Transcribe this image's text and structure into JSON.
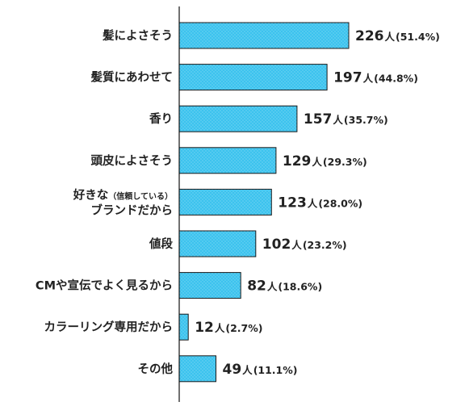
{
  "chart_data": {
    "type": "bar",
    "orientation": "horizontal",
    "title": "",
    "xlabel": "",
    "ylabel": "",
    "grid": false,
    "legend": "none",
    "unit": "人",
    "xlim": [
      0,
      226
    ],
    "bar_color": "#3cc3ee",
    "bar_border_color": "#1a1a1a",
    "categories": [
      {
        "label": "髪によさそう",
        "label_line2": "",
        "label_small": ""
      },
      {
        "label": "髪質にあわせて",
        "label_line2": "",
        "label_small": ""
      },
      {
        "label": "香り",
        "label_line2": "",
        "label_small": ""
      },
      {
        "label": "頭皮によさそう",
        "label_line2": "",
        "label_small": ""
      },
      {
        "label": "好きな",
        "label_small": "（信頼している）",
        "label_line2": "ブランドだから"
      },
      {
        "label": "値段",
        "label_line2": "",
        "label_small": ""
      },
      {
        "label": "CMや宣伝でよく見るから",
        "label_line2": "",
        "label_small": ""
      },
      {
        "label": "カラーリング専用だから",
        "label_line2": "",
        "label_small": ""
      },
      {
        "label": "その他",
        "label_line2": "",
        "label_small": ""
      }
    ],
    "values": [
      226,
      197,
      157,
      129,
      123,
      102,
      82,
      12,
      49
    ],
    "percent_labels": [
      "(51.4%)",
      "(44.8%)",
      "(35.7%)",
      "(29.3%)",
      "(28.0%)",
      "(23.2%)",
      "(18.6%)",
      "(2.7%)",
      "(11.1%)"
    ]
  }
}
